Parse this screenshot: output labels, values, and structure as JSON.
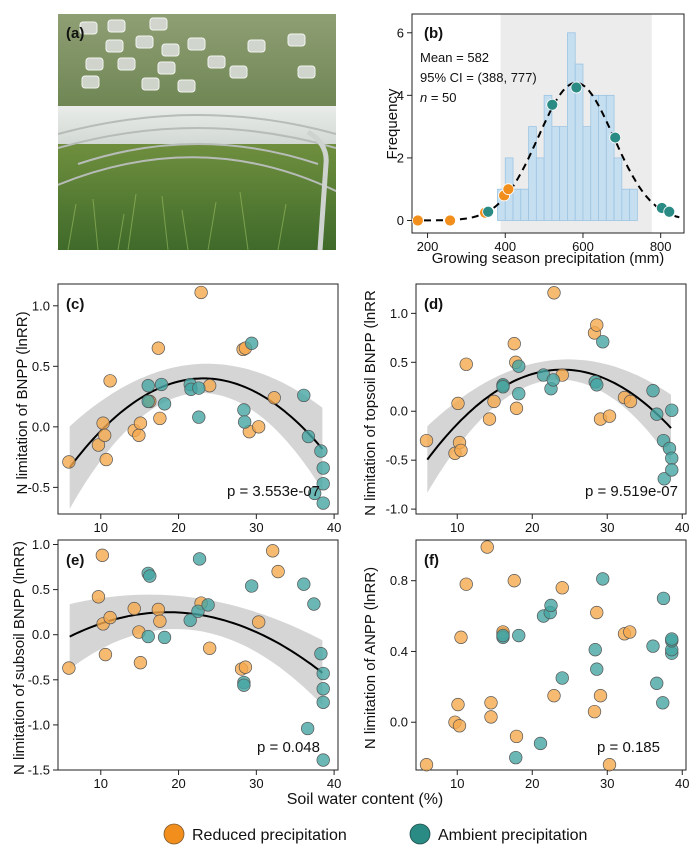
{
  "panels": {
    "a": {
      "label": "(a)"
    },
    "b": {
      "label": "(b)",
      "stats": {
        "mean": "Mean = 582",
        "ci": "95% CI = (388, 777)",
        "n_label": "n",
        "n_value": " = 50"
      },
      "xlabel": "Growing season precipitation (mm)",
      "ylabel": "Frequency",
      "xticks": [
        200,
        400,
        600,
        800
      ],
      "yticks": [
        0,
        2,
        4,
        6
      ],
      "xlim": [
        160,
        860
      ],
      "ylim": [
        -0.4,
        6.6
      ],
      "ci_band": [
        388,
        777
      ],
      "hist": {
        "bin_start": 380,
        "bin_width": 20,
        "counts": [
          1,
          2,
          1,
          1,
          3,
          2,
          4,
          3,
          3,
          6,
          5,
          3,
          4,
          4,
          4,
          2,
          1,
          1
        ]
      },
      "curve": {
        "mean": 582,
        "sd": 97,
        "peak": 4.4,
        "x_range": [
          160,
          850
        ]
      },
      "points": [
        {
          "x": 175,
          "y": 0,
          "group": "reduced"
        },
        {
          "x": 258,
          "y": 0,
          "group": "reduced"
        },
        {
          "x": 348,
          "y": 0.25,
          "group": "reduced"
        },
        {
          "x": 397,
          "y": 0.8,
          "group": "reduced"
        },
        {
          "x": 408,
          "y": 1.0,
          "group": "reduced"
        },
        {
          "x": 356,
          "y": 0.28,
          "group": "ambient"
        },
        {
          "x": 521,
          "y": 3.7,
          "group": "ambient"
        },
        {
          "x": 583,
          "y": 4.25,
          "group": "ambient"
        },
        {
          "x": 683,
          "y": 2.65,
          "group": "ambient"
        },
        {
          "x": 803,
          "y": 0.4,
          "group": "ambient"
        },
        {
          "x": 822,
          "y": 0.28,
          "group": "ambient"
        }
      ]
    },
    "c": {
      "label": "(c)",
      "ylabel": "N limitation of BNPP (lnRR)",
      "pvalue": "p = 3.553e-07",
      "yticks": [
        -0.5,
        0.0,
        0.5,
        1.0
      ],
      "ylim": [
        -0.72,
        1.18
      ]
    },
    "d": {
      "label": "(d)",
      "ylabel": "N limitation of topsoil BNPP (lnRR",
      "pvalue": "p = 9.519e-07",
      "yticks": [
        -1.0,
        -0.5,
        0.0,
        0.5,
        1.0
      ],
      "ylim": [
        -1.05,
        1.3
      ]
    },
    "e": {
      "label": "(e)",
      "ylabel": "N limitation of subsoil BNPP (lnRR)",
      "pvalue": "p = 0.048",
      "yticks": [
        -1.5,
        -1.0,
        -0.5,
        0.0,
        0.5,
        1.0
      ],
      "ylim": [
        -1.5,
        1.05
      ]
    },
    "f": {
      "label": "(f)",
      "ylabel": "N limitation of ANPP (lnRR)",
      "pvalue": "p = 0.185",
      "yticks": [
        0.0,
        0.4,
        0.8
      ],
      "ylim": [
        -0.27,
        1.03
      ]
    }
  },
  "common": {
    "xlabel": "Soil water content (%)",
    "xticks": [
      10,
      20,
      30,
      40
    ],
    "xlim": [
      4.5,
      40.5
    ]
  },
  "legend": {
    "reduced": "Reduced precipitation",
    "ambient": "Ambient precipitation"
  },
  "colors": {
    "reduced": "#f5a94e",
    "ambient": "#45a5a2",
    "reduced_solid": "#f28e1c",
    "ambient_solid": "#2a8a84",
    "band": "#d0d0d0",
    "hist_fill": "#c6dff0",
    "hist_edge": "#9cc4e2",
    "ci_shade": "#ececec"
  },
  "chart_data": [
    {
      "type": "histogram",
      "panel": "b",
      "title": "",
      "xlabel": "Growing season precipitation (mm)",
      "ylabel": "Frequency",
      "annotations": [
        "Mean = 582",
        "95% CI = (388, 777)",
        "n = 50"
      ]
    },
    {
      "type": "scatter",
      "panel": "c",
      "xlabel": "Soil water content (%)",
      "ylabel": "N limitation of BNPP (lnRR)",
      "fit": {
        "type": "quadratic",
        "a": -0.00249,
        "b": 0.11552,
        "c": -0.9398,
        "x_range": [
          6,
          38.5
        ],
        "ci_base": 0.12,
        "ci_slope": 0.055
      },
      "series": [
        {
          "name": "Reduced precipitation",
          "points": [
            [
              5.9,
              -0.29
            ],
            [
              9.7,
              -0.15
            ],
            [
              10.3,
              0.03
            ],
            [
              10.5,
              -0.07
            ],
            [
              10.7,
              -0.27
            ],
            [
              11.2,
              0.38
            ],
            [
              14.3,
              -0.03
            ],
            [
              14.9,
              -0.07
            ],
            [
              15.1,
              0.03
            ],
            [
              16.3,
              0.21
            ],
            [
              17.4,
              0.65
            ],
            [
              17.6,
              0.07
            ],
            [
              22.9,
              1.11
            ],
            [
              24.0,
              0.34
            ],
            [
              28.3,
              0.64
            ],
            [
              28.6,
              0.65
            ],
            [
              29.1,
              -0.04
            ],
            [
              30.3,
              0.0
            ],
            [
              32.3,
              0.24
            ]
          ]
        },
        {
          "name": "Ambient precipitation",
          "points": [
            [
              16.1,
              0.34
            ],
            [
              16.1,
              0.21
            ],
            [
              17.8,
              0.35
            ],
            [
              18.2,
              0.19
            ],
            [
              21.5,
              0.35
            ],
            [
              21.6,
              0.31
            ],
            [
              22.6,
              0.08
            ],
            [
              22.6,
              0.32
            ],
            [
              28.4,
              0.14
            ],
            [
              28.5,
              0.04
            ],
            [
              29.4,
              0.69
            ],
            [
              36.1,
              0.26
            ],
            [
              36.7,
              -0.08
            ],
            [
              37.5,
              -0.55
            ],
            [
              38.3,
              -0.2
            ],
            [
              38.6,
              -0.34
            ],
            [
              38.6,
              -0.47
            ],
            [
              38.6,
              -0.63
            ]
          ]
        }
      ]
    },
    {
      "type": "scatter",
      "panel": "d",
      "xlabel": "Soil water content (%)",
      "ylabel": "N limitation of topsoil BNPP (lnRR",
      "fit": {
        "type": "quadratic",
        "a": -0.00284,
        "b": 0.1363,
        "c": -1.21,
        "x_range": [
          6,
          38.5
        ],
        "ci_base": 0.1,
        "ci_slope": 0.06
      },
      "series": [
        {
          "name": "Reduced precipitation",
          "points": [
            [
              5.9,
              -0.3
            ],
            [
              9.7,
              -0.43
            ],
            [
              10.1,
              0.08
            ],
            [
              10.3,
              -0.32
            ],
            [
              10.5,
              -0.4
            ],
            [
              11.2,
              0.48
            ],
            [
              14.3,
              -0.08
            ],
            [
              14.9,
              0.1
            ],
            [
              16.1,
              0.26
            ],
            [
              17.6,
              0.69
            ],
            [
              17.8,
              0.5
            ],
            [
              17.9,
              0.03
            ],
            [
              22.9,
              1.21
            ],
            [
              24.0,
              0.37
            ],
            [
              28.3,
              0.8
            ],
            [
              28.6,
              0.88
            ],
            [
              29.1,
              -0.08
            ],
            [
              30.3,
              -0.05
            ],
            [
              32.3,
              0.14
            ],
            [
              33.1,
              0.1
            ]
          ]
        },
        {
          "name": "Ambient precipitation",
          "points": [
            [
              16.1,
              0.27
            ],
            [
              16.1,
              0.25
            ],
            [
              18.2,
              0.46
            ],
            [
              18.2,
              0.18
            ],
            [
              21.5,
              0.37
            ],
            [
              22.5,
              0.23
            ],
            [
              22.8,
              0.32
            ],
            [
              28.4,
              0.3
            ],
            [
              28.6,
              0.27
            ],
            [
              29.4,
              0.71
            ],
            [
              36.1,
              0.21
            ],
            [
              36.6,
              -0.03
            ],
            [
              37.5,
              -0.3
            ],
            [
              37.6,
              -0.69
            ],
            [
              38.3,
              -0.38
            ],
            [
              38.6,
              -0.48
            ],
            [
              38.6,
              -0.6
            ],
            [
              38.6,
              0.01
            ]
          ]
        }
      ]
    },
    {
      "type": "scatter",
      "panel": "e",
      "xlabel": "Soil water content (%)",
      "ylabel": "N limitation of subsoil BNPP (lnRR)",
      "fit": {
        "type": "quadratic",
        "a": -0.0017,
        "b": 0.0633,
        "c": -0.34,
        "x_range": [
          6,
          38.5
        ],
        "ci_base": 0.18,
        "ci_slope": 0.045
      },
      "series": [
        {
          "name": "Reduced precipitation",
          "points": [
            [
              5.9,
              -0.37
            ],
            [
              9.7,
              0.42
            ],
            [
              10.2,
              0.88
            ],
            [
              10.3,
              0.12
            ],
            [
              10.6,
              -0.22
            ],
            [
              11.2,
              0.19
            ],
            [
              14.3,
              0.29
            ],
            [
              14.9,
              0.03
            ],
            [
              15.1,
              -0.31
            ],
            [
              17.4,
              0.28
            ],
            [
              17.6,
              0.15
            ],
            [
              22.9,
              0.35
            ],
            [
              24.0,
              -0.15
            ],
            [
              28.1,
              -0.38
            ],
            [
              28.6,
              -0.36
            ],
            [
              30.3,
              0.14
            ],
            [
              32.1,
              0.93
            ],
            [
              32.8,
              0.7
            ]
          ]
        },
        {
          "name": "Ambient precipitation",
          "points": [
            [
              16.1,
              0.68
            ],
            [
              16.3,
              0.65
            ],
            [
              16.1,
              -0.02
            ],
            [
              18.2,
              -0.03
            ],
            [
              21.5,
              0.16
            ],
            [
              22.5,
              0.26
            ],
            [
              22.7,
              0.84
            ],
            [
              23.8,
              0.33
            ],
            [
              28.4,
              -0.53
            ],
            [
              28.4,
              -0.56
            ],
            [
              29.4,
              0.54
            ],
            [
              36.1,
              0.56
            ],
            [
              36.6,
              -1.04
            ],
            [
              37.4,
              0.34
            ],
            [
              38.3,
              -0.21
            ],
            [
              38.6,
              -0.43
            ],
            [
              38.6,
              -0.6
            ],
            [
              38.6,
              -0.75
            ],
            [
              38.6,
              -1.39
            ]
          ]
        }
      ]
    },
    {
      "type": "scatter",
      "panel": "f",
      "xlabel": "Soil water content (%)",
      "ylabel": "N limitation of ANPP (lnRR)",
      "series": [
        {
          "name": "Reduced precipitation",
          "points": [
            [
              5.9,
              -0.24
            ],
            [
              9.7,
              0.0
            ],
            [
              10.1,
              0.1
            ],
            [
              10.3,
              -0.02
            ],
            [
              10.5,
              0.48
            ],
            [
              11.2,
              0.78
            ],
            [
              14.0,
              0.99
            ],
            [
              14.5,
              0.03
            ],
            [
              14.5,
              0.11
            ],
            [
              16.1,
              0.5
            ],
            [
              16.1,
              0.51
            ],
            [
              17.6,
              0.8
            ],
            [
              17.9,
              -0.08
            ],
            [
              22.9,
              0.15
            ],
            [
              24.0,
              0.76
            ],
            [
              28.3,
              0.06
            ],
            [
              28.6,
              0.62
            ],
            [
              29.1,
              0.15
            ],
            [
              30.3,
              -0.24
            ],
            [
              32.3,
              0.5
            ],
            [
              33.0,
              0.51
            ]
          ]
        },
        {
          "name": "Ambient precipitation",
          "points": [
            [
              16.1,
              0.48
            ],
            [
              16.1,
              0.49
            ],
            [
              17.8,
              -0.2
            ],
            [
              18.2,
              0.49
            ],
            [
              21.1,
              -0.12
            ],
            [
              21.5,
              0.6
            ],
            [
              22.4,
              0.62
            ],
            [
              22.5,
              0.66
            ],
            [
              24.0,
              0.25
            ],
            [
              28.4,
              0.41
            ],
            [
              28.6,
              0.3
            ],
            [
              29.4,
              0.81
            ],
            [
              36.1,
              0.43
            ],
            [
              36.6,
              0.22
            ],
            [
              37.4,
              0.11
            ],
            [
              37.5,
              0.7
            ],
            [
              38.6,
              0.39
            ],
            [
              38.6,
              0.41
            ],
            [
              38.6,
              0.46
            ],
            [
              38.6,
              0.47
            ]
          ]
        }
      ]
    }
  ]
}
